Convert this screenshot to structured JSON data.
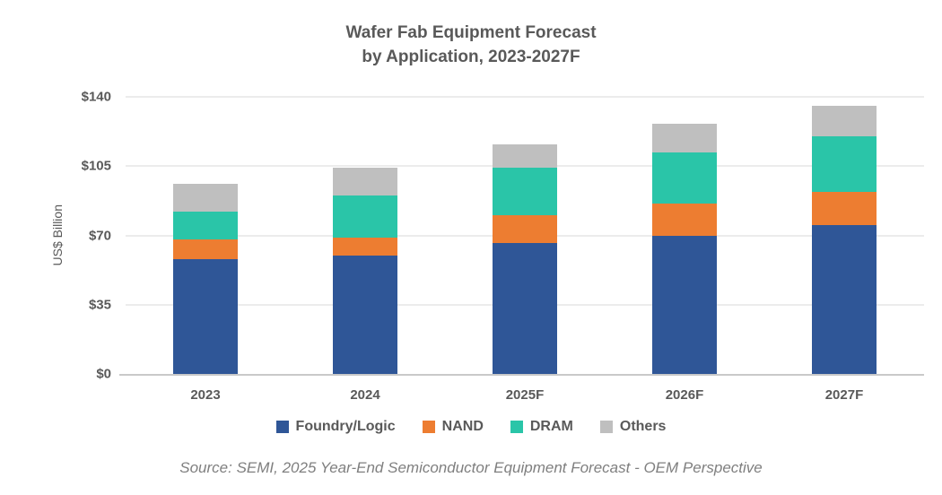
{
  "title": {
    "line1": "Wafer Fab Equipment Forecast",
    "line2": "by Application, 2023-2027F"
  },
  "y_axis": {
    "title": "US$ Billion"
  },
  "source": "Source: SEMI, 2025 Year-End Semiconductor Equipment Forecast - OEM Perspective",
  "colors": {
    "title_text": "#595959",
    "axis_text": "#595959",
    "gridline": "#D9D9D9",
    "axis_line": "#C9C9C9",
    "source_text": "#7F7F7F"
  },
  "chart_data": {
    "type": "bar",
    "stacked": true,
    "title": "Wafer Fab Equipment Forecast by Application, 2023-2027F",
    "ylabel": "US$ Billion",
    "ylim": [
      0,
      140
    ],
    "yticks": [
      {
        "value": 0,
        "label": "$0"
      },
      {
        "value": 35,
        "label": "$35"
      },
      {
        "value": 70,
        "label": "$70"
      },
      {
        "value": 105,
        "label": "$105"
      },
      {
        "value": 140,
        "label": "$140"
      }
    ],
    "grid": true,
    "legend_position": "bottom",
    "categories": [
      "2023",
      "2024",
      "2025F",
      "2026F",
      "2027F"
    ],
    "series": [
      {
        "name": "Foundry/Logic",
        "color": "#2F5697",
        "values": [
          58,
          60,
          66,
          70,
          75
        ]
      },
      {
        "name": "NAND",
        "color": "#ED7D31",
        "values": [
          10,
          9,
          14,
          16,
          17
        ]
      },
      {
        "name": "DRAM",
        "color": "#2AC5A8",
        "values": [
          14,
          21,
          24,
          26,
          28
        ]
      },
      {
        "name": "Others",
        "color": "#BFBFBF",
        "values": [
          14,
          14,
          12,
          14.5,
          15.5
        ]
      }
    ]
  }
}
